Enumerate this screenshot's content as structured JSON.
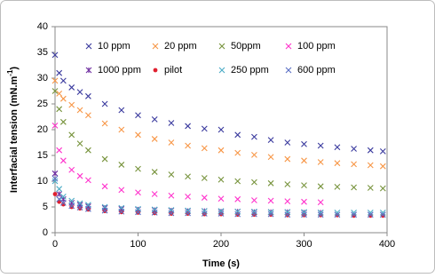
{
  "chart_data": {
    "type": "scatter",
    "x_label": "Time (s)",
    "y_label": [
      "Interfacial tension (mN.m",
      "-1",
      ")"
    ],
    "xlim": [
      0,
      400
    ],
    "xticks": [
      0,
      100,
      200,
      300,
      400
    ],
    "ylim": [
      0,
      40
    ],
    "yticks": [
      0,
      5,
      10,
      15,
      20,
      25,
      30,
      35,
      40
    ],
    "grid": false,
    "legend": "top",
    "x": [
      0,
      5,
      10,
      20,
      30,
      40,
      60,
      80,
      100,
      120,
      140,
      160,
      180,
      200,
      220,
      240,
      260,
      280,
      300,
      320,
      340,
      360,
      380,
      395
    ],
    "series": [
      {
        "name": "10 ppm",
        "color": "#3a3a9e",
        "marker": "x",
        "values": [
          34.5,
          31,
          29.5,
          28.2,
          27.3,
          26.5,
          25,
          23.8,
          22.8,
          22,
          21.3,
          20.7,
          20.2,
          20,
          19,
          18.6,
          18,
          17.5,
          17.2,
          16.9,
          16.6,
          16.3,
          16,
          15.8
        ]
      },
      {
        "name": "20 ppm",
        "color": "#f79646",
        "marker": "x",
        "values": [
          29.5,
          27,
          26,
          24.8,
          23.8,
          22.8,
          21.2,
          20,
          19,
          18.2,
          17.5,
          16.9,
          16.4,
          16,
          15.5,
          15.1,
          14.7,
          14.3,
          14,
          13.7,
          13.5,
          13.3,
          13.1,
          12.9
        ]
      },
      {
        "name": "50ppm",
        "color": "#77933c",
        "marker": "x",
        "values": [
          27.5,
          24,
          21.5,
          19,
          17.3,
          16,
          14.3,
          13.2,
          12.4,
          11.8,
          11.3,
          10.9,
          10.6,
          10.3,
          10,
          9.8,
          9.6,
          9.4,
          9.2,
          9,
          8.9,
          8.8,
          8.7,
          8.6
        ]
      },
      {
        "name": "100 ppm",
        "color": "#ff33cc",
        "marker": "x",
        "values": [
          20.8,
          16,
          14,
          12.2,
          11,
          10.2,
          9,
          8.3,
          7.8,
          7.5,
          7.2,
          7,
          6.8,
          6.6,
          6.5,
          6.3,
          6.2,
          6.1,
          6,
          5.9,
          null,
          null,
          null,
          null
        ]
      },
      {
        "name": "1000 ppm",
        "color": "#7030a0",
        "marker": "star",
        "values": [
          11.5,
          7.5,
          6.5,
          5.8,
          5.4,
          5.1,
          4.8,
          4.6,
          4.5,
          4.4,
          4.3,
          4.2,
          4.2,
          4.1,
          4.1,
          4,
          4,
          4,
          3.9,
          3.9,
          null,
          null,
          null,
          null
        ]
      },
      {
        "name": "pilot",
        "color": "#e0202f",
        "marker": "dot",
        "values": [
          7.5,
          6,
          5.5,
          5,
          4.7,
          4.5,
          4.2,
          4,
          3.9,
          3.8,
          3.7,
          3.7,
          3.6,
          3.6,
          3.5,
          3.5,
          3.5,
          3.4,
          3.4,
          3.4,
          3.4,
          3.3,
          3.3,
          3.3
        ]
      },
      {
        "name": "250 ppm",
        "color": "#4bacc6",
        "marker": "x",
        "values": [
          10,
          8.5,
          7,
          6.2,
          5.7,
          5.4,
          5,
          4.8,
          4.6,
          4.5,
          4.4,
          4.3,
          4.2,
          4.2,
          4.1,
          4.1,
          4,
          4,
          4,
          3.9,
          3.9,
          3.9,
          3.9,
          3.9
        ]
      },
      {
        "name": "600 ppm",
        "color": "#5a6fc4",
        "marker": "x",
        "values": [
          10.5,
          6.5,
          5.8,
          5.2,
          4.9,
          4.6,
          4.3,
          4.1,
          4,
          3.9,
          3.8,
          3.8,
          3.7,
          3.7,
          3.6,
          3.6,
          3.6,
          3.5,
          3.5,
          3.5,
          3.5,
          3.5,
          3.5,
          3.5
        ]
      }
    ]
  }
}
